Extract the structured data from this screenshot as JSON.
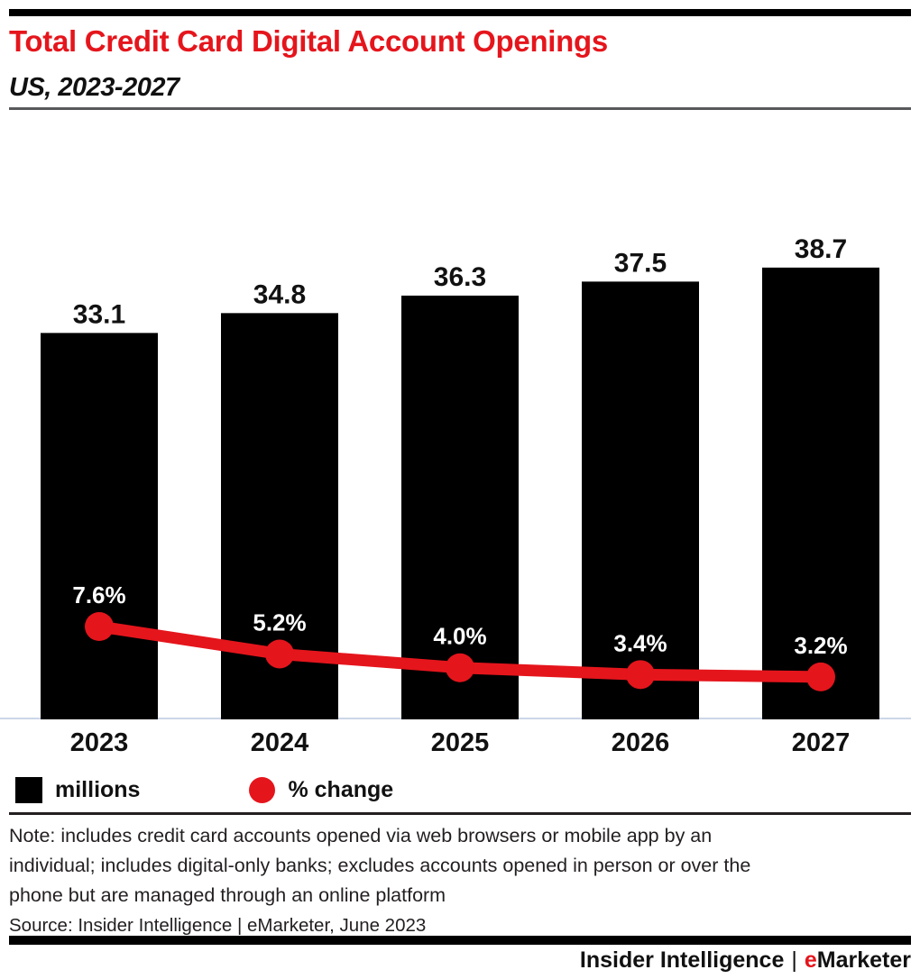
{
  "header": {
    "title": "Total Credit Card Digital Account Openings",
    "subtitle": "US, 2023-2027"
  },
  "chart_data": {
    "type": "bar",
    "title": "Total Credit Card Digital Account Openings",
    "subtitle": "US, 2023-2027",
    "categories": [
      "2023",
      "2024",
      "2025",
      "2026",
      "2027"
    ],
    "series": [
      {
        "name": "millions",
        "type": "bar",
        "color": "#000000",
        "values": [
          33.1,
          34.8,
          36.3,
          37.5,
          38.7
        ],
        "labels": [
          "33.1",
          "34.8",
          "36.3",
          "37.5",
          "38.7"
        ]
      },
      {
        "name": "% change",
        "type": "line",
        "color": "#e5151c",
        "values": [
          7.6,
          5.2,
          4.0,
          3.4,
          3.2
        ],
        "labels": [
          "7.6%",
          "5.2%",
          "4.0%",
          "3.4%",
          "3.2%"
        ]
      }
    ],
    "xlabel": "",
    "ylabel": "",
    "axis_tick_labels_shown": false,
    "value_labels_on_bars": true,
    "grid": false,
    "legend_position": "bottom-left"
  },
  "legend": {
    "items": [
      {
        "label": "millions",
        "swatch": "square",
        "color": "#000000"
      },
      {
        "label": "% change",
        "swatch": "circle",
        "color": "#e5151c"
      }
    ]
  },
  "note_lines": [
    "Note: includes credit card accounts opened via web browsers or mobile app by an",
    "individual; includes digital-only banks; excludes accounts opened in person or over the",
    "phone but are managed through an online platform"
  ],
  "source": "Source: Insider Intelligence | eMarketer, June 2023",
  "footer": {
    "left": "Insider Intelligence",
    "separator": "|",
    "brand_e": "e",
    "brand_rest": "Marketer"
  },
  "colors": {
    "accent_red": "#e5151c",
    "bar_black": "#000000",
    "axis_line": "#ccd6e8",
    "header_rule": "#58595b",
    "text_dark": "#231f20"
  }
}
